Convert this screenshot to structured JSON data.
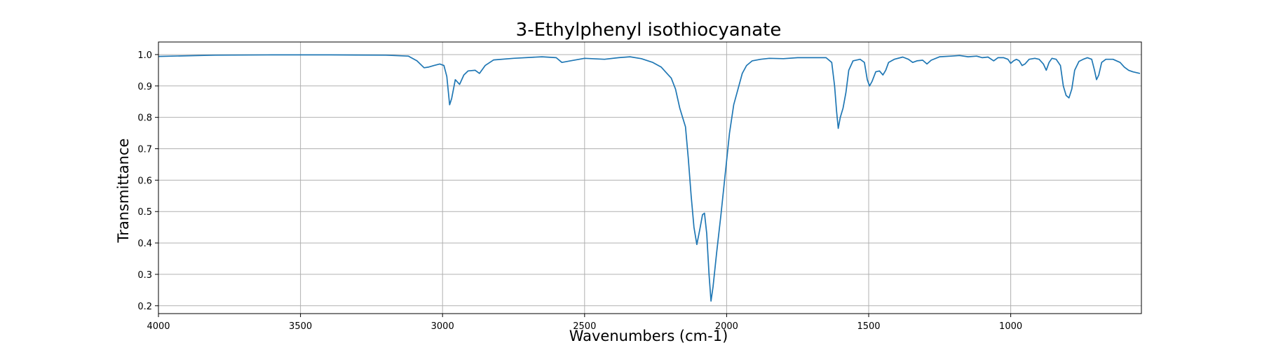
{
  "chart_data": {
    "type": "line",
    "title": "3-Ethylphenyl isothiocyanate",
    "xlabel": "Wavenumbers (cm-1)",
    "ylabel": "Transmittance",
    "xlim": [
      4000,
      540
    ],
    "ylim": [
      0.175,
      1.04
    ],
    "x_reversed": true,
    "grid": true,
    "x_ticks": [
      4000,
      3500,
      3000,
      2500,
      2000,
      1500,
      1000
    ],
    "y_ticks": [
      0.2,
      0.3,
      0.4,
      0.5,
      0.6,
      0.7,
      0.8,
      0.9,
      1.0
    ],
    "series": [
      {
        "color": "#1f77b4",
        "points": [
          [
            4000,
            0.994
          ],
          [
            3800,
            0.998
          ],
          [
            3600,
            0.999
          ],
          [
            3400,
            0.999
          ],
          [
            3200,
            0.998
          ],
          [
            3120,
            0.995
          ],
          [
            3090,
            0.98
          ],
          [
            3065,
            0.958
          ],
          [
            3050,
            0.96
          ],
          [
            3030,
            0.965
          ],
          [
            3010,
            0.97
          ],
          [
            2995,
            0.965
          ],
          [
            2985,
            0.93
          ],
          [
            2975,
            0.84
          ],
          [
            2968,
            0.86
          ],
          [
            2955,
            0.92
          ],
          [
            2940,
            0.905
          ],
          [
            2925,
            0.935
          ],
          [
            2910,
            0.948
          ],
          [
            2885,
            0.95
          ],
          [
            2870,
            0.94
          ],
          [
            2850,
            0.965
          ],
          [
            2820,
            0.983
          ],
          [
            2750,
            0.988
          ],
          [
            2650,
            0.993
          ],
          [
            2600,
            0.99
          ],
          [
            2580,
            0.975
          ],
          [
            2550,
            0.98
          ],
          [
            2500,
            0.988
          ],
          [
            2430,
            0.985
          ],
          [
            2380,
            0.99
          ],
          [
            2340,
            0.993
          ],
          [
            2300,
            0.987
          ],
          [
            2260,
            0.975
          ],
          [
            2230,
            0.96
          ],
          [
            2210,
            0.94
          ],
          [
            2195,
            0.925
          ],
          [
            2180,
            0.89
          ],
          [
            2165,
            0.83
          ],
          [
            2155,
            0.8
          ],
          [
            2145,
            0.77
          ],
          [
            2135,
            0.67
          ],
          [
            2125,
            0.55
          ],
          [
            2115,
            0.45
          ],
          [
            2105,
            0.395
          ],
          [
            2095,
            0.44
          ],
          [
            2085,
            0.49
          ],
          [
            2078,
            0.495
          ],
          [
            2070,
            0.43
          ],
          [
            2062,
            0.3
          ],
          [
            2055,
            0.215
          ],
          [
            2048,
            0.26
          ],
          [
            2035,
            0.37
          ],
          [
            2020,
            0.49
          ],
          [
            2005,
            0.62
          ],
          [
            1990,
            0.75
          ],
          [
            1975,
            0.84
          ],
          [
            1960,
            0.89
          ],
          [
            1945,
            0.94
          ],
          [
            1930,
            0.965
          ],
          [
            1910,
            0.98
          ],
          [
            1880,
            0.985
          ],
          [
            1850,
            0.988
          ],
          [
            1800,
            0.987
          ],
          [
            1750,
            0.99
          ],
          [
            1700,
            0.99
          ],
          [
            1650,
            0.99
          ],
          [
            1630,
            0.975
          ],
          [
            1620,
            0.9
          ],
          [
            1613,
            0.82
          ],
          [
            1607,
            0.765
          ],
          [
            1600,
            0.8
          ],
          [
            1590,
            0.83
          ],
          [
            1580,
            0.88
          ],
          [
            1570,
            0.95
          ],
          [
            1555,
            0.98
          ],
          [
            1530,
            0.985
          ],
          [
            1515,
            0.975
          ],
          [
            1505,
            0.92
          ],
          [
            1497,
            0.9
          ],
          [
            1488,
            0.915
          ],
          [
            1475,
            0.945
          ],
          [
            1462,
            0.948
          ],
          [
            1450,
            0.935
          ],
          [
            1440,
            0.95
          ],
          [
            1430,
            0.975
          ],
          [
            1410,
            0.985
          ],
          [
            1380,
            0.992
          ],
          [
            1360,
            0.985
          ],
          [
            1345,
            0.975
          ],
          [
            1330,
            0.98
          ],
          [
            1310,
            0.982
          ],
          [
            1295,
            0.97
          ],
          [
            1280,
            0.982
          ],
          [
            1250,
            0.993
          ],
          [
            1210,
            0.995
          ],
          [
            1180,
            0.997
          ],
          [
            1150,
            0.993
          ],
          [
            1120,
            0.995
          ],
          [
            1100,
            0.99
          ],
          [
            1080,
            0.992
          ],
          [
            1060,
            0.98
          ],
          [
            1045,
            0.99
          ],
          [
            1025,
            0.99
          ],
          [
            1010,
            0.985
          ],
          [
            1000,
            0.972
          ],
          [
            990,
            0.98
          ],
          [
            980,
            0.985
          ],
          [
            970,
            0.98
          ],
          [
            960,
            0.965
          ],
          [
            950,
            0.97
          ],
          [
            935,
            0.985
          ],
          [
            915,
            0.988
          ],
          [
            900,
            0.985
          ],
          [
            885,
            0.97
          ],
          [
            875,
            0.95
          ],
          [
            865,
            0.975
          ],
          [
            855,
            0.988
          ],
          [
            840,
            0.985
          ],
          [
            825,
            0.965
          ],
          [
            815,
            0.9
          ],
          [
            805,
            0.87
          ],
          [
            795,
            0.862
          ],
          [
            785,
            0.89
          ],
          [
            775,
            0.95
          ],
          [
            760,
            0.978
          ],
          [
            745,
            0.985
          ],
          [
            730,
            0.99
          ],
          [
            715,
            0.985
          ],
          [
            705,
            0.95
          ],
          [
            698,
            0.92
          ],
          [
            690,
            0.935
          ],
          [
            680,
            0.975
          ],
          [
            665,
            0.985
          ],
          [
            640,
            0.985
          ],
          [
            615,
            0.975
          ],
          [
            600,
            0.96
          ],
          [
            585,
            0.95
          ],
          [
            570,
            0.945
          ],
          [
            545,
            0.94
          ]
        ]
      }
    ]
  }
}
